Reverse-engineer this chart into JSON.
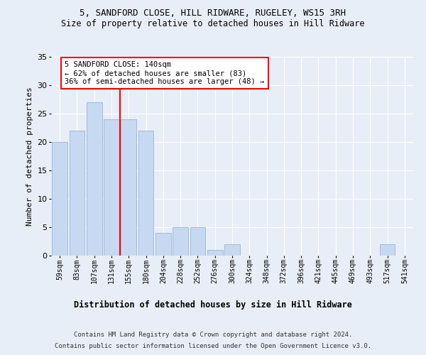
{
  "title1": "5, SANDFORD CLOSE, HILL RIDWARE, RUGELEY, WS15 3RH",
  "title2": "Size of property relative to detached houses in Hill Ridware",
  "xlabel": "Distribution of detached houses by size in Hill Ridware",
  "ylabel": "Number of detached properties",
  "categories": [
    "59sqm",
    "83sqm",
    "107sqm",
    "131sqm",
    "155sqm",
    "180sqm",
    "204sqm",
    "228sqm",
    "252sqm",
    "276sqm",
    "300sqm",
    "324sqm",
    "348sqm",
    "372sqm",
    "396sqm",
    "421sqm",
    "445sqm",
    "469sqm",
    "493sqm",
    "517sqm",
    "541sqm"
  ],
  "values": [
    20,
    22,
    27,
    24,
    24,
    22,
    4,
    5,
    5,
    1,
    2,
    0,
    0,
    0,
    0,
    0,
    0,
    0,
    0,
    2,
    0
  ],
  "bar_color": "#c6d9f0",
  "bar_edge_color": "#9ab5d5",
  "vline_color": "red",
  "annotation_text": "5 SANDFORD CLOSE: 140sqm\n← 62% of detached houses are smaller (83)\n36% of semi-detached houses are larger (48) →",
  "annotation_box_color": "white",
  "annotation_box_edge_color": "red",
  "ylim": [
    0,
    35
  ],
  "yticks": [
    0,
    5,
    10,
    15,
    20,
    25,
    30,
    35
  ],
  "background_color": "#e8eef7",
  "grid_color": "white",
  "footnote1": "Contains HM Land Registry data © Crown copyright and database right 2024.",
  "footnote2": "Contains public sector information licensed under the Open Government Licence v3.0."
}
